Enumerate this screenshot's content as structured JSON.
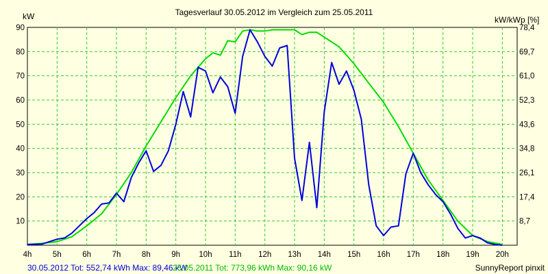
{
  "chart_data": {
    "type": "line",
    "title": "Tagesverlauf 30.05.2012 im Vergleich zum 25.05.2011",
    "ylabel_left": "kW",
    "ylabel_right": "kW/kWp [%]",
    "xlim": [
      4,
      20.5
    ],
    "ylim": [
      0,
      90
    ],
    "x_ticks": [
      {
        "value": 4,
        "label": "4h"
      },
      {
        "value": 5,
        "label": "5h"
      },
      {
        "value": 6,
        "label": "6h"
      },
      {
        "value": 7,
        "label": "7h"
      },
      {
        "value": 8,
        "label": "8h"
      },
      {
        "value": 9,
        "label": "9h"
      },
      {
        "value": 10,
        "label": "10h"
      },
      {
        "value": 11,
        "label": "11h"
      },
      {
        "value": 12,
        "label": "12h"
      },
      {
        "value": 13,
        "label": "13h"
      },
      {
        "value": 14,
        "label": "14h"
      },
      {
        "value": 15,
        "label": "15h"
      },
      {
        "value": 16,
        "label": "16h"
      },
      {
        "value": 17,
        "label": "17h"
      },
      {
        "value": 18,
        "label": "18h"
      },
      {
        "value": 19,
        "label": "19h"
      },
      {
        "value": 20,
        "label": "20h"
      }
    ],
    "y_ticks_left": [
      {
        "value": 10,
        "label": "10"
      },
      {
        "value": 20,
        "label": "20"
      },
      {
        "value": 30,
        "label": "30"
      },
      {
        "value": 40,
        "label": "40"
      },
      {
        "value": 50,
        "label": "50"
      },
      {
        "value": 60,
        "label": "60"
      },
      {
        "value": 70,
        "label": "70"
      },
      {
        "value": 80,
        "label": "80"
      },
      {
        "value": 90,
        "label": "90"
      }
    ],
    "y_ticks_right": [
      {
        "value": 10,
        "label": "8,7"
      },
      {
        "value": 20,
        "label": "17,4"
      },
      {
        "value": 30,
        "label": "26,1"
      },
      {
        "value": 40,
        "label": "34,8"
      },
      {
        "value": 50,
        "label": "43,6"
      },
      {
        "value": 60,
        "label": "52,3"
      },
      {
        "value": 70,
        "label": "61,0"
      },
      {
        "value": 80,
        "label": "69,7"
      },
      {
        "value": 90,
        "label": "78,4"
      }
    ],
    "grid": true,
    "series": [
      {
        "name": "30.05.2012",
        "color": "#0000dd",
        "points": [
          [
            4.0,
            0.3
          ],
          [
            4.5,
            0.5
          ],
          [
            4.75,
            1.5
          ],
          [
            5.0,
            2.5
          ],
          [
            5.25,
            3.0
          ],
          [
            5.5,
            5.0
          ],
          [
            5.75,
            8.0
          ],
          [
            6.0,
            11.0
          ],
          [
            6.25,
            13.5
          ],
          [
            6.5,
            17.0
          ],
          [
            6.75,
            17.5
          ],
          [
            7.0,
            21.5
          ],
          [
            7.25,
            18.0
          ],
          [
            7.5,
            28.0
          ],
          [
            7.75,
            34.0
          ],
          [
            8.0,
            39.0
          ],
          [
            8.25,
            30.5
          ],
          [
            8.5,
            33.0
          ],
          [
            8.75,
            39.0
          ],
          [
            9.0,
            50.0
          ],
          [
            9.25,
            63.5
          ],
          [
            9.5,
            53.0
          ],
          [
            9.75,
            73.5
          ],
          [
            10.0,
            72.0
          ],
          [
            10.25,
            63.0
          ],
          [
            10.5,
            69.5
          ],
          [
            10.75,
            65.5
          ],
          [
            11.0,
            54.5
          ],
          [
            11.25,
            78.0
          ],
          [
            11.5,
            89.0
          ],
          [
            11.75,
            84.0
          ],
          [
            12.0,
            78.0
          ],
          [
            12.25,
            74.0
          ],
          [
            12.5,
            81.5
          ],
          [
            12.75,
            82.5
          ],
          [
            13.0,
            36.0
          ],
          [
            13.25,
            18.5
          ],
          [
            13.5,
            42.5
          ],
          [
            13.75,
            15.5
          ],
          [
            14.0,
            55.0
          ],
          [
            14.25,
            75.5
          ],
          [
            14.5,
            66.5
          ],
          [
            14.75,
            72.0
          ],
          [
            15.0,
            64.0
          ],
          [
            15.25,
            52.0
          ],
          [
            15.5,
            25.0
          ],
          [
            15.75,
            8.0
          ],
          [
            16.0,
            4.0
          ],
          [
            16.25,
            7.5
          ],
          [
            16.5,
            8.0
          ],
          [
            16.75,
            29.5
          ],
          [
            17.0,
            38.0
          ],
          [
            17.25,
            30.0
          ],
          [
            17.5,
            25.0
          ],
          [
            17.75,
            21.0
          ],
          [
            18.0,
            18.0
          ],
          [
            18.25,
            13.0
          ],
          [
            18.5,
            7.0
          ],
          [
            18.75,
            3.0
          ],
          [
            19.0,
            4.0
          ],
          [
            19.25,
            3.0
          ],
          [
            19.5,
            1.0
          ],
          [
            19.75,
            0.3
          ],
          [
            20.0,
            0.0
          ]
        ]
      },
      {
        "name": "25.05.2011",
        "color": "#00dd00",
        "points": [
          [
            4.0,
            0.3
          ],
          [
            4.5,
            0.8
          ],
          [
            5.0,
            1.5
          ],
          [
            5.5,
            3.5
          ],
          [
            6.0,
            8.0
          ],
          [
            6.5,
            13.0
          ],
          [
            7.0,
            21.0
          ],
          [
            7.5,
            30.0
          ],
          [
            8.0,
            41.0
          ],
          [
            8.5,
            51.0
          ],
          [
            9.0,
            61.0
          ],
          [
            9.5,
            70.0
          ],
          [
            10.0,
            77.0
          ],
          [
            10.25,
            79.5
          ],
          [
            10.5,
            78.5
          ],
          [
            10.75,
            84.5
          ],
          [
            11.0,
            84.0
          ],
          [
            11.25,
            88.5
          ],
          [
            11.5,
            89.0
          ],
          [
            11.75,
            88.5
          ],
          [
            12.0,
            88.5
          ],
          [
            12.25,
            89.0
          ],
          [
            12.5,
            89.0
          ],
          [
            13.0,
            89.0
          ],
          [
            13.25,
            87.0
          ],
          [
            13.5,
            88.0
          ],
          [
            13.75,
            88.0
          ],
          [
            14.0,
            86.0
          ],
          [
            14.5,
            82.0
          ],
          [
            15.0,
            75.0
          ],
          [
            15.5,
            67.0
          ],
          [
            16.0,
            59.0
          ],
          [
            16.5,
            49.0
          ],
          [
            17.0,
            38.0
          ],
          [
            17.5,
            27.0
          ],
          [
            18.0,
            18.5
          ],
          [
            18.5,
            10.0
          ],
          [
            19.0,
            4.0
          ],
          [
            19.5,
            1.5
          ],
          [
            20.0,
            0.3
          ]
        ]
      }
    ]
  },
  "footer": {
    "series1_stats": "30.05.2012 Tot: 552,74 kWh Max: 89,46 kW",
    "series2_stats": "25.05.2011 Tot: 773,96 kWh Max: 90,16 kW",
    "credit": "SunnyReport pinxit"
  },
  "colors": {
    "background": "#ffffe1",
    "grid": "#33cc33",
    "series1": "#0000dd",
    "series2": "#00dd00"
  }
}
